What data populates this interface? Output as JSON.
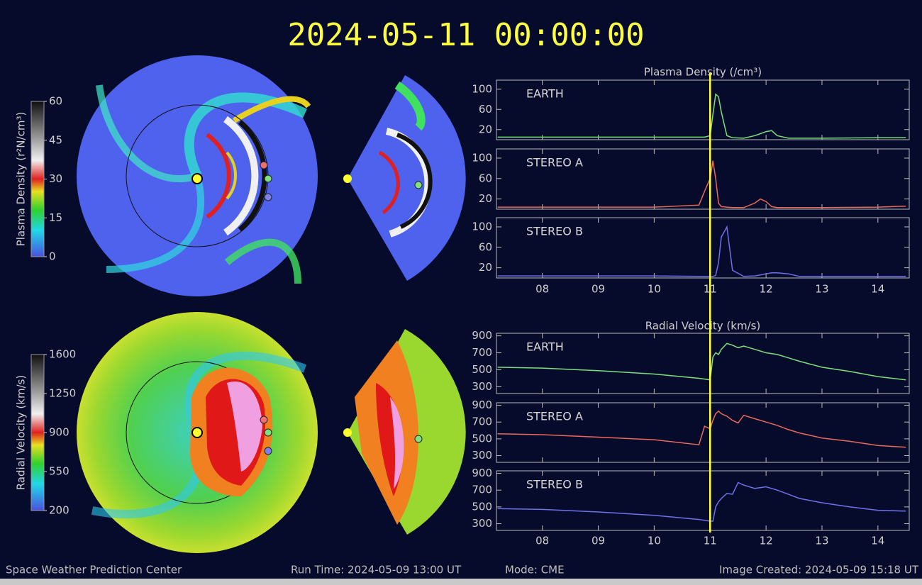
{
  "timestamp": "2024-05-11 00:00:00",
  "colorbars": [
    {
      "label": "Plasma Density (r²N/cm³)",
      "lim": [
        0,
        60
      ],
      "ticks": [
        0,
        15,
        30,
        45,
        60
      ]
    },
    {
      "label": "Radial Velocity (km/s)",
      "lim": [
        200,
        1600
      ],
      "ticks": [
        200,
        550,
        900,
        1250,
        1600
      ]
    }
  ],
  "footer": {
    "center": "Space Weather Prediction Center",
    "run_time": "Run Time: 2024-05-09 13:00 UT",
    "mode": "Mode: CME",
    "created": "Image Created: 2024-05-09 15:18 UT"
  },
  "chart_data": [
    {
      "type": "line",
      "title": "Plasma Density (/cm³)",
      "cursor_x": 11,
      "xlim": [
        7.18,
        14.56
      ],
      "xticks": [
        {
          "value": 8,
          "label": "08"
        },
        {
          "value": 9,
          "label": "09"
        },
        10,
        11,
        12,
        13,
        14
      ],
      "x": [
        7.2,
        8,
        9,
        10,
        10.8,
        10.9,
        11.0,
        11.05,
        11.1,
        11.15,
        11.2,
        11.3,
        11.4,
        11.6,
        11.8,
        11.9,
        12.0,
        12.1,
        12.2,
        12.4,
        12.6,
        13,
        14,
        14.5
      ],
      "panels": [
        {
          "ylim": [
            0,
            118
          ],
          "yticks": [
            20,
            60,
            100
          ],
          "series": [
            {
              "name": "EARTH",
              "color": "#7be07b",
              "values": [
                5,
                5,
                5,
                5,
                5,
                5,
                8,
                50,
                90,
                85,
                55,
                8,
                4,
                3,
                8,
                12,
                16,
                18,
                8,
                3,
                3,
                3,
                4,
                4
              ]
            }
          ]
        },
        {
          "ylim": [
            0,
            118
          ],
          "yticks": [
            20,
            60,
            100
          ],
          "series": [
            {
              "name": "STEREO A",
              "color": "#e86a5a",
              "values": [
                4,
                4,
                4,
                4,
                8,
                35,
                60,
                95,
                60,
                12,
                5,
                4,
                3,
                3,
                12,
                20,
                15,
                5,
                3,
                3,
                3,
                3,
                4,
                6
              ]
            }
          ]
        },
        {
          "ylim": [
            0,
            118
          ],
          "yticks": [
            20,
            60,
            100
          ],
          "series": [
            {
              "name": "STEREO B",
              "color": "#7070ea",
              "values": [
                4,
                4,
                4,
                4,
                3,
                3,
                3,
                3,
                5,
                30,
                80,
                100,
                15,
                3,
                4,
                6,
                8,
                10,
                10,
                8,
                3,
                3,
                3,
                3
              ]
            }
          ]
        }
      ]
    },
    {
      "type": "line",
      "title": "Radial Velocity (km/s)",
      "cursor_x": 11,
      "xlim": [
        7.18,
        14.56
      ],
      "xticks": [
        {
          "value": 8,
          "label": "08"
        },
        {
          "value": 9,
          "label": "09"
        },
        10,
        11,
        12,
        13,
        14
      ],
      "x": [
        7.2,
        8,
        9,
        10,
        10.8,
        10.9,
        11.0,
        11.05,
        11.1,
        11.15,
        11.2,
        11.3,
        11.4,
        11.5,
        11.6,
        11.8,
        12.0,
        12.2,
        12.4,
        12.6,
        13,
        13.5,
        14,
        14.5
      ],
      "panels": [
        {
          "ylim": [
            220,
            930
          ],
          "yticks": [
            300,
            500,
            700,
            900
          ],
          "series": [
            {
              "name": "EARTH",
              "color": "#7be07b",
              "values": [
                530,
                520,
                490,
                450,
                400,
                390,
                380,
                650,
                700,
                680,
                740,
                810,
                790,
                760,
                780,
                740,
                700,
                680,
                640,
                600,
                530,
                480,
                420,
                380
              ]
            }
          ]
        },
        {
          "ylim": [
            220,
            930
          ],
          "yticks": [
            300,
            500,
            700,
            900
          ],
          "series": [
            {
              "name": "STEREO A",
              "color": "#e86a5a",
              "values": [
                560,
                550,
                520,
                490,
                430,
                650,
                620,
                720,
                800,
                830,
                800,
                770,
                720,
                690,
                780,
                740,
                700,
                660,
                610,
                570,
                510,
                470,
                420,
                400
              ]
            }
          ]
        },
        {
          "ylim": [
            220,
            930
          ],
          "yticks": [
            300,
            500,
            700,
            900
          ],
          "series": [
            {
              "name": "STEREO B",
              "color": "#7070ea",
              "values": [
                480,
                470,
                440,
                400,
                350,
                340,
                330,
                330,
                500,
                560,
                600,
                660,
                650,
                790,
                760,
                720,
                740,
                700,
                650,
                600,
                550,
                500,
                460,
                450
              ]
            }
          ]
        }
      ]
    }
  ]
}
